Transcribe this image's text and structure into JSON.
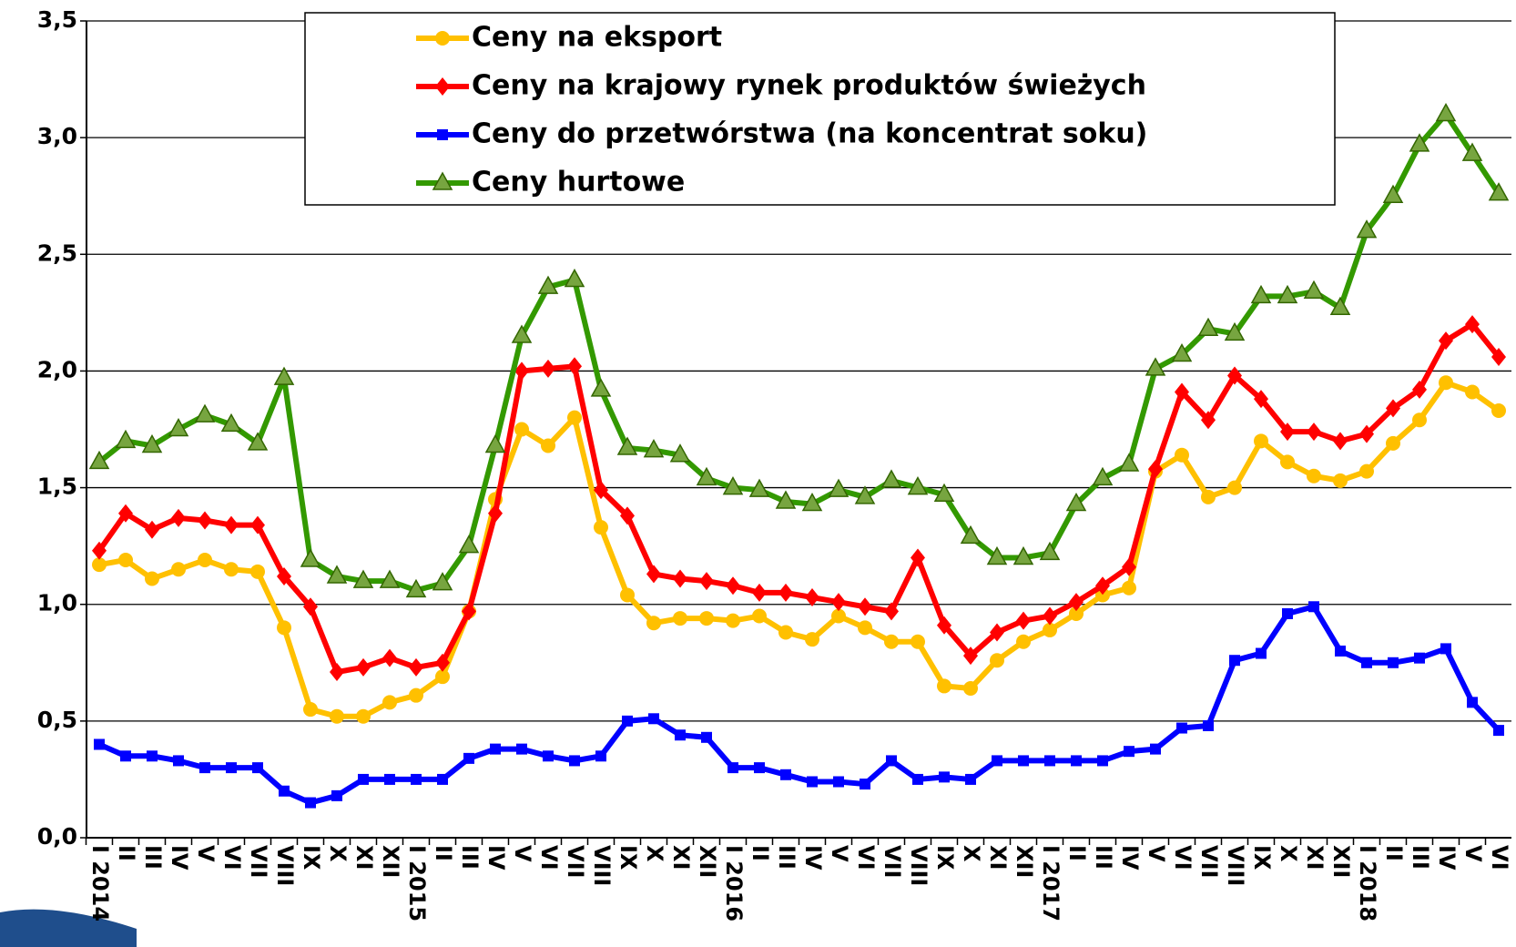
{
  "chart_data": {
    "type": "line",
    "categories": [
      "I 2014",
      "II",
      "III",
      "IV",
      "V",
      "VI",
      "VII",
      "VIII",
      "IX",
      "X",
      "XI",
      "XII",
      "I 2015",
      "II",
      "III",
      "IV",
      "V",
      "VI",
      "VII",
      "VIII",
      "IX",
      "X",
      "XI",
      "XII",
      "I 2016",
      "II",
      "III",
      "IV",
      "V",
      "VI",
      "VII",
      "VIII",
      "IX",
      "X",
      "XI",
      "XII",
      "I 2017",
      "II",
      "III",
      "IV",
      "V",
      "VI",
      "VII",
      "VIII",
      "IX",
      "X",
      "XI",
      "XII",
      "I 2018",
      "II",
      "III",
      "IV",
      "V",
      "VI"
    ],
    "series": [
      {
        "name": "Ceny na eksport",
        "color": "#FFC000",
        "marker": "circle",
        "values": [
          1.17,
          1.19,
          1.11,
          1.15,
          1.19,
          1.15,
          1.14,
          0.9,
          0.55,
          0.52,
          0.52,
          0.58,
          0.61,
          0.69,
          0.97,
          1.45,
          1.75,
          1.68,
          1.8,
          1.33,
          1.04,
          0.92,
          0.94,
          0.94,
          0.93,
          0.95,
          0.88,
          0.85,
          0.95,
          0.9,
          0.84,
          0.84,
          0.65,
          0.64,
          0.76,
          0.84,
          0.89,
          0.96,
          1.04,
          1.07,
          1.57,
          1.64,
          1.46,
          1.5,
          1.7,
          1.61,
          1.55,
          1.53,
          1.57,
          1.69,
          1.79,
          1.95,
          1.91,
          1.83
        ]
      },
      {
        "name": "Ceny na krajowy rynek produktów świeżych",
        "color": "#FF0000",
        "marker": "diamond",
        "values": [
          1.23,
          1.39,
          1.32,
          1.37,
          1.36,
          1.34,
          1.34,
          1.12,
          0.99,
          0.71,
          0.73,
          0.77,
          0.73,
          0.75,
          0.97,
          1.39,
          2.0,
          2.01,
          2.02,
          1.49,
          1.38,
          1.13,
          1.11,
          1.1,
          1.08,
          1.05,
          1.05,
          1.03,
          1.01,
          0.99,
          0.97,
          1.2,
          0.91,
          0.78,
          0.88,
          0.93,
          0.95,
          1.01,
          1.08,
          1.16,
          1.58,
          1.91,
          1.79,
          1.98,
          1.88,
          1.74,
          1.74,
          1.7,
          1.73,
          1.84,
          1.92,
          2.13,
          2.2,
          2.06
        ]
      },
      {
        "name": "Ceny do przetwórstwa (na koncentrat soku)",
        "color": "#0000FF",
        "marker": "square",
        "values": [
          0.4,
          0.35,
          0.35,
          0.33,
          0.3,
          0.3,
          0.3,
          0.2,
          0.15,
          0.18,
          0.25,
          0.25,
          0.25,
          0.25,
          0.34,
          0.38,
          0.38,
          0.35,
          0.33,
          0.35,
          0.5,
          0.51,
          0.44,
          0.43,
          0.3,
          0.3,
          0.27,
          0.24,
          0.24,
          0.23,
          0.33,
          0.25,
          0.26,
          0.25,
          0.33,
          0.33,
          0.33,
          0.33,
          0.33,
          0.37,
          0.38,
          0.47,
          0.48,
          0.76,
          0.79,
          0.96,
          0.99,
          0.8,
          0.75,
          0.75,
          0.77,
          0.81,
          0.58,
          0.46
        ]
      },
      {
        "name": "Ceny hurtowe",
        "color": "#339900",
        "marker": "triangle",
        "values": [
          1.61,
          1.7,
          1.68,
          1.75,
          1.81,
          1.77,
          1.69,
          1.97,
          1.19,
          1.12,
          1.1,
          1.1,
          1.06,
          1.09,
          1.25,
          1.68,
          2.15,
          2.36,
          2.39,
          1.92,
          1.67,
          1.66,
          1.64,
          1.54,
          1.5,
          1.49,
          1.44,
          1.43,
          1.49,
          1.46,
          1.53,
          1.5,
          1.47,
          1.29,
          1.2,
          1.2,
          1.22,
          1.43,
          1.54,
          1.6,
          2.01,
          2.07,
          2.18,
          2.16,
          2.32,
          2.32,
          2.34,
          2.27,
          2.6,
          2.75,
          2.97,
          3.1,
          2.93,
          2.76
        ]
      }
    ],
    "ylim": [
      0,
      3.5
    ],
    "yticks": [
      {
        "value": 0,
        "label": "0,0"
      },
      {
        "value": 0.5,
        "label": "0,5"
      },
      {
        "value": 1,
        "label": "1,0"
      },
      {
        "value": 1.5,
        "label": "1,5"
      },
      {
        "value": 2,
        "label": "2,0"
      },
      {
        "value": 2.5,
        "label": "2,5"
      },
      {
        "value": 3,
        "label": "3,0"
      },
      {
        "value": 3.5,
        "label": "3,5"
      }
    ],
    "grid": true
  }
}
